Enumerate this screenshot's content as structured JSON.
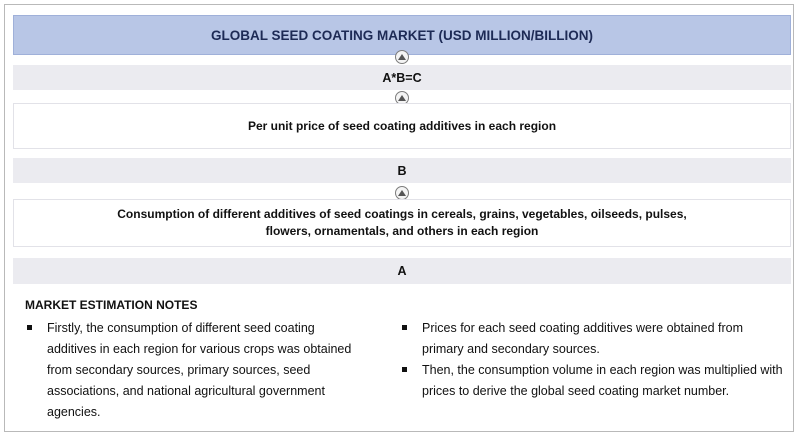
{
  "diagram": {
    "title": "GLOBAL SEED COATING MARKET (USD MILLION/BILLION)",
    "formula": "A*B=C",
    "price_label": "Per unit price of seed coating additives in each region",
    "b_label": "B",
    "consumption_line1": "Consumption of different additives of seed coatings in cereals, grains, vegetables, oilseeds, pulses,",
    "consumption_line2": "flowers, ornamentals, and others in each region",
    "a_label": "A",
    "arrow_icon": "up-arrow-circle-icon",
    "colors": {
      "title_band": "#b8c6e6",
      "grey_band": "#ebebf0",
      "title_text": "#1d2a55"
    }
  },
  "notes": {
    "title": "MARKET ESTIMATION NOTES",
    "left": [
      "Firstly, the consumption of different seed coating additives in each region for various crops was obtained from secondary sources, primary sources, seed associations, and national agricultural government agencies."
    ],
    "right": [
      "Prices for each seed coating additives were obtained from primary and secondary sources.",
      "Then, the consumption volume in each region was multiplied with prices to derive the global seed coating market number."
    ]
  }
}
